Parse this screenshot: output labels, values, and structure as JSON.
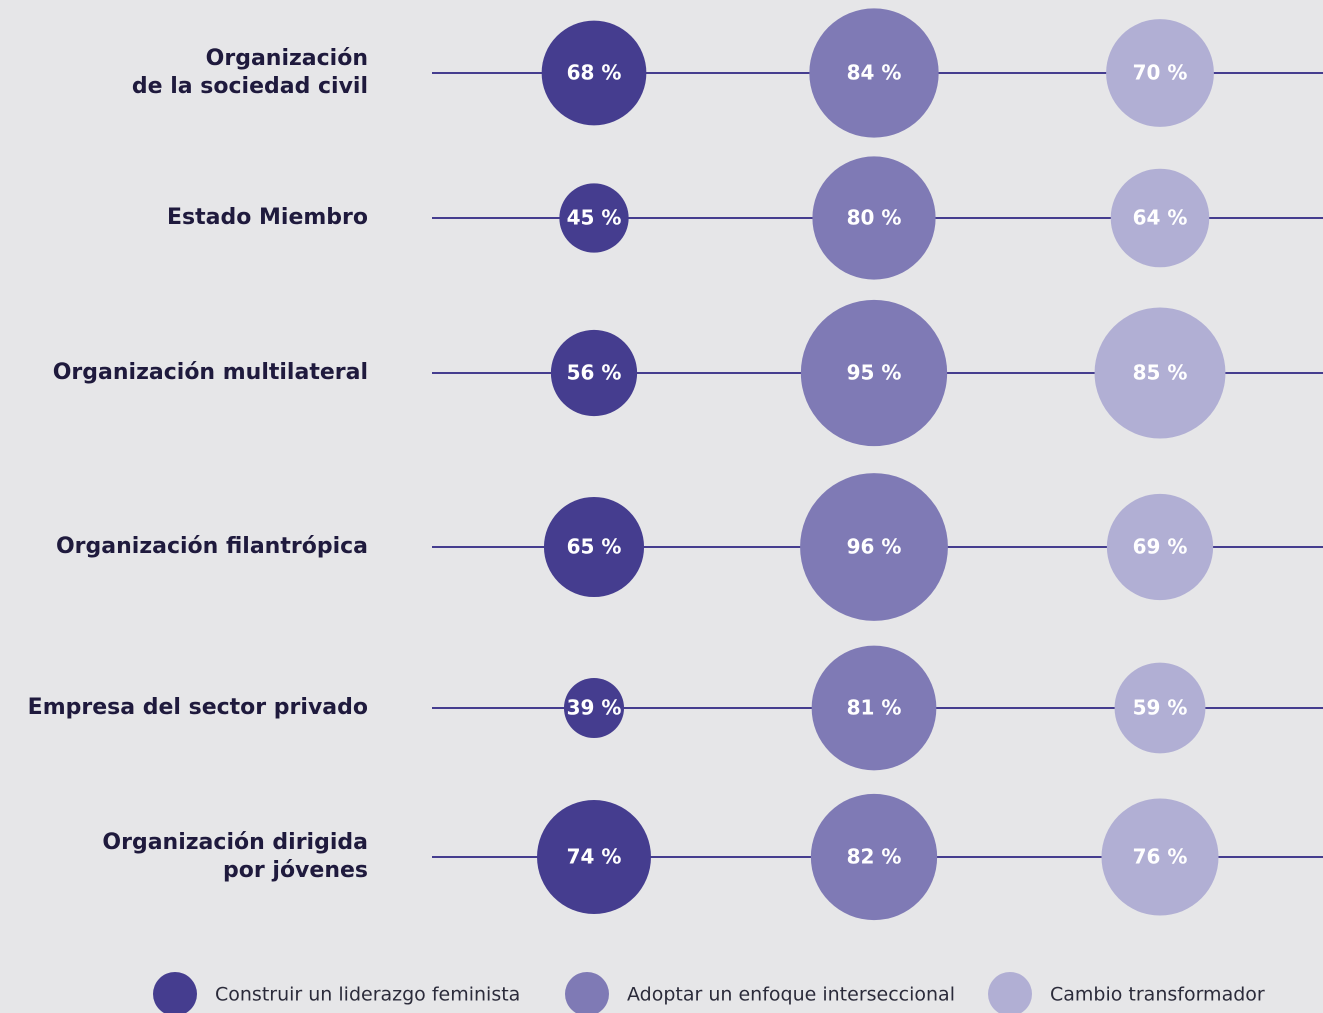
{
  "chart_data": {
    "type": "bubble",
    "categories": [
      [
        "Organización",
        "de la sociedad civil"
      ],
      [
        "Estado Miembro"
      ],
      [
        "Organización multilateral"
      ],
      [
        "Organización filantrópica"
      ],
      [
        "Empresa del sector privado"
      ],
      [
        "Organización dirigida",
        "por jóvenes"
      ]
    ],
    "series": [
      {
        "name": "Construir un liderazgo feminista",
        "color": "#453d8f",
        "values": [
          68,
          45,
          56,
          65,
          39,
          74
        ],
        "value_labels": [
          "68 %",
          "45 %",
          "56 %",
          "65 %",
          "39 %",
          "74 %"
        ]
      },
      {
        "name": "Adoptar un enfoque interseccional",
        "color": "#7f7ab5",
        "values": [
          84,
          80,
          95,
          96,
          81,
          82
        ],
        "value_labels": [
          "84 %",
          "80 %",
          "95 %",
          "96 %",
          "81 %",
          "82 %"
        ]
      },
      {
        "name": "Cambio transformador",
        "color": "#b1afd4",
        "values": [
          70,
          64,
          85,
          69,
          59,
          76
        ],
        "value_labels": [
          "70 %",
          "64 %",
          "85 %",
          "69 %",
          "59 %",
          "76 %"
        ]
      }
    ]
  }
}
